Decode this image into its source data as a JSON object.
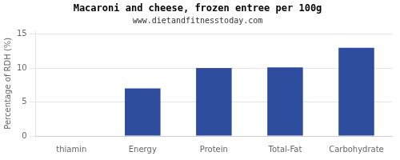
{
  "chart_data": {
    "type": "bar",
    "title": "Macaroni and cheese, frozen entree per 100g",
    "subtitle": "www.dietandfitnesstoday.com",
    "ylabel": "Percentage of RDH (%)",
    "categories": [
      "thiamin",
      "Energy",
      "Protein",
      "Total-Fat",
      "Carbohydrate"
    ],
    "values": [
      0.0,
      7.0,
      10.0,
      10.1,
      13.0
    ],
    "color": "#2e4d9e",
    "ylim": [
      0,
      15.5
    ],
    "yticks": [
      0,
      5,
      10,
      15
    ],
    "grid": true
  }
}
